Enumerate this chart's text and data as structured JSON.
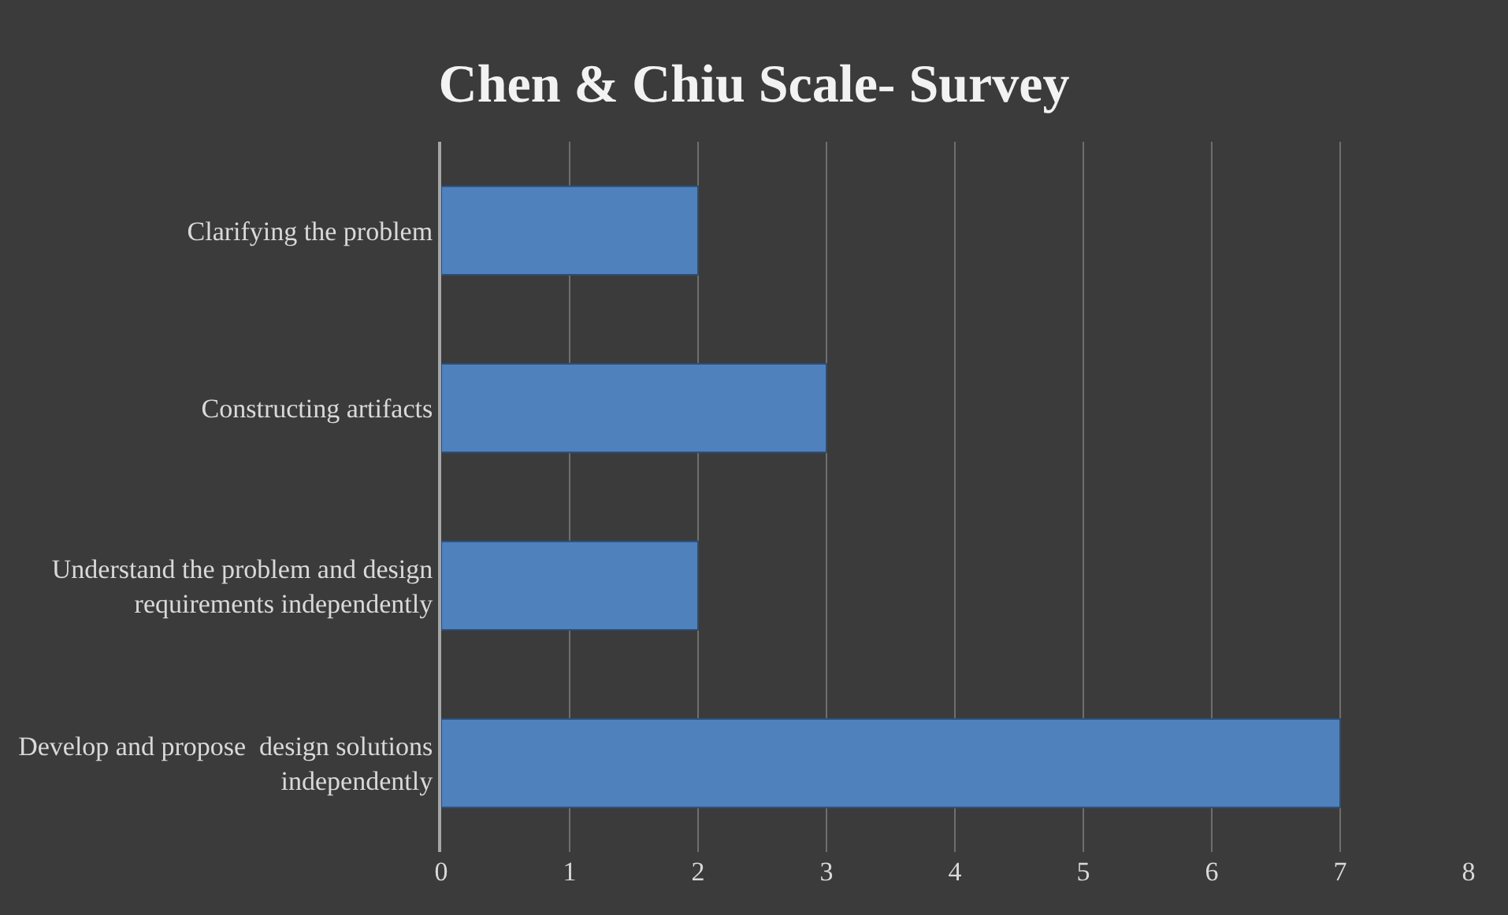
{
  "chart_data": {
    "type": "bar",
    "orientation": "horizontal",
    "title": "Chen & Chiu Scale- Survey",
    "categories": [
      "Clarifying the problem",
      "Constructing artifacts",
      "Understand the problem and design requirements independently",
      "Develop and propose  design solutions independently"
    ],
    "values": [
      2,
      3,
      2,
      7
    ],
    "color": "#4f81bd",
    "xlim": [
      0,
      8
    ],
    "xticks": [
      0,
      1,
      2,
      3,
      4,
      5,
      6,
      7,
      8
    ],
    "grid": "x"
  }
}
